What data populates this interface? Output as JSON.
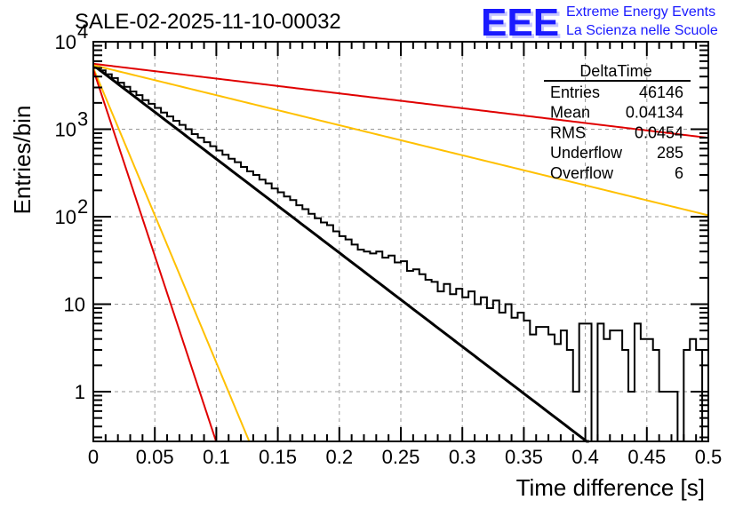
{
  "chart_data": {
    "type": "bar",
    "title": "SALE-02-2025-11-10-00032",
    "xlabel": "Time difference [s]",
    "ylabel": "Entries/bin",
    "xlim": [
      0,
      0.5
    ],
    "ylim": [
      0.26,
      10000
    ],
    "yscale": "log",
    "grid": true,
    "x_ticks": [
      "0",
      "0.05",
      "0.1",
      "0.15",
      "0.2",
      "0.25",
      "0.3",
      "0.35",
      "0.4",
      "0.45",
      "0.5"
    ],
    "x_tick_values": [
      0,
      0.05,
      0.1,
      0.15,
      0.2,
      0.25,
      0.3,
      0.35,
      0.4,
      0.45,
      0.5
    ],
    "y_ticks": [
      {
        "value": 1,
        "base": "1",
        "exp": ""
      },
      {
        "value": 10,
        "base": "10",
        "exp": ""
      },
      {
        "value": 100,
        "base": "10",
        "exp": "2"
      },
      {
        "value": 1000,
        "base": "10",
        "exp": "3"
      },
      {
        "value": 10000,
        "base": "10",
        "exp": "4"
      }
    ],
    "histogram": {
      "name": "DeltaTime",
      "bin_width": 0.005,
      "x_start": 0,
      "counts": [
        5200,
        4700,
        4250,
        3850,
        3400,
        3050,
        2700,
        2450,
        2150,
        1950,
        1750,
        1550,
        1400,
        1250,
        1120,
        1000,
        880,
        800,
        710,
        640,
        570,
        510,
        460,
        420,
        370,
        330,
        300,
        265,
        240,
        210,
        190,
        170,
        155,
        135,
        122,
        108,
        96,
        86,
        80,
        68,
        60,
        55,
        48,
        42,
        40,
        38,
        40,
        34,
        36,
        30,
        31,
        24,
        25,
        22,
        19,
        18,
        14,
        17,
        13,
        15,
        12,
        14,
        10,
        12,
        9,
        11,
        8,
        10,
        7,
        8,
        6.5,
        4.5,
        5.5,
        5.5,
        4.5,
        3.5,
        5,
        3,
        1,
        6,
        6,
        0,
        6,
        4,
        5,
        5,
        3,
        1,
        6,
        4,
        4,
        3,
        1,
        1,
        1,
        0,
        3,
        4,
        3,
        0
      ]
    },
    "fits": [
      {
        "name": "fit-black",
        "color": "#000000",
        "amplitude": 5400,
        "tau": 0.0405,
        "x_range": [
          0,
          0.405
        ]
      },
      {
        "name": "fit-red-upper",
        "color": "#e00000",
        "amplitude": 5600,
        "tau": 0.2565,
        "x_range": [
          0,
          0.5
        ]
      },
      {
        "name": "fit-orange-upper",
        "color": "#ffc000",
        "amplitude": 5400,
        "tau": 0.1265,
        "x_range": [
          0,
          0.5
        ]
      },
      {
        "name": "fit-orange-lower",
        "color": "#ffc000",
        "amplitude": 5000,
        "tau": 0.0129,
        "x_range": [
          0,
          0.13
        ]
      },
      {
        "name": "fit-red-lower",
        "color": "#e00000",
        "amplitude": 4800,
        "tau": 0.0102,
        "x_range": [
          0,
          0.1
        ]
      }
    ],
    "stats_box": {
      "title": "DeltaTime",
      "rows": [
        {
          "label": "Entries",
          "value": "46146"
        },
        {
          "label": "Mean",
          "value": "0.04134"
        },
        {
          "label": "RMS",
          "value": "0.0454"
        },
        {
          "label": "Underflow",
          "value": "285"
        },
        {
          "label": "Overflow",
          "value": "6"
        }
      ]
    }
  },
  "logo": {
    "mark": "EEE",
    "line1": "Extreme Energy Events",
    "line2": "La Scienza nelle Scuole",
    "color": "#1a1aff"
  }
}
